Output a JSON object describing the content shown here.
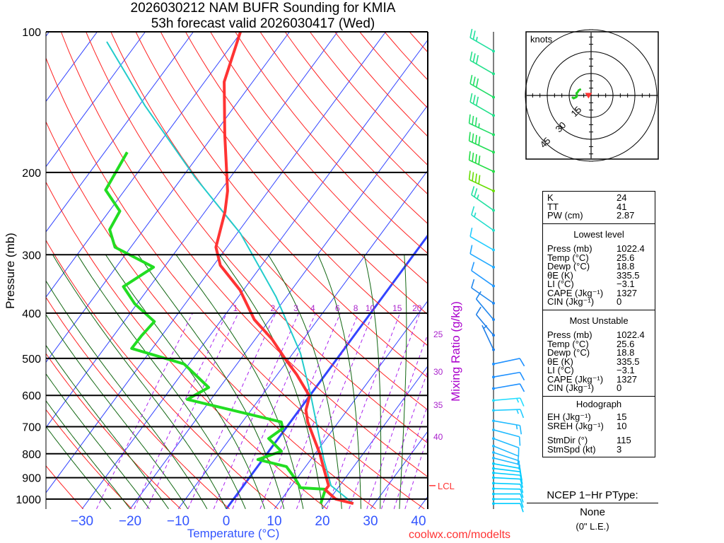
{
  "title": {
    "line1": "2026030212 NAM BUFR Sounding for KMIA",
    "line2": "53h forecast valid 2026030417 (Wed)"
  },
  "chart_data": {
    "type": "line",
    "subtype": "skew-t log-p",
    "title": "2026030212 NAM BUFR Sounding for KMIA",
    "xlabel": "Temperature (°C)",
    "ylabel": "Pressure (mb)",
    "y2label": "Mixing Ratio (g/kg)",
    "xlim": [
      -40,
      42
    ],
    "ylim": [
      1050,
      100
    ],
    "temp_ticks": [
      -30,
      -20,
      -10,
      0,
      10,
      20,
      30,
      40
    ],
    "temp_tick_labels": [
      "−30",
      "−20",
      "−10",
      "0",
      "10",
      "20",
      "30",
      "40"
    ],
    "pressure_ticks": [
      100,
      200,
      300,
      400,
      500,
      600,
      700,
      800,
      900,
      1000
    ],
    "pressure_tick_labels": [
      "100",
      "200",
      "300",
      "400",
      "500",
      "600",
      "700",
      "800",
      "900",
      "1000"
    ],
    "mixing_ratio_top": [
      1,
      2,
      3,
      4,
      6,
      8,
      10,
      15,
      20
    ],
    "mixing_ratio_top_labels": [
      "1",
      "2",
      "3",
      "4",
      "6",
      "8",
      "10",
      "15",
      "20"
    ],
    "mixing_ratio_right": [
      25,
      30,
      35,
      40
    ],
    "mixing_ratio_right_labels": [
      "25",
      "30",
      "35",
      "40"
    ],
    "lcl_label": "LCL",
    "lcl_pressure": 936,
    "series": [
      {
        "name": "Temperature",
        "color": "#ff3333",
        "p": [
          1022.4,
          1000,
          956,
          936,
          861,
          800,
          684,
          645,
          602,
          542,
          500,
          455,
          413,
          357,
          316,
          289,
          243,
          219,
          166,
          128,
          100
        ],
        "t": [
          25.6,
          21.2,
          17.7,
          17.7,
          14.1,
          11.0,
          3.6,
          1.4,
          0.0,
          -5.9,
          -10.9,
          -16.5,
          -23.2,
          -30.7,
          -38.6,
          -42.3,
          -45.8,
          -48.5,
          -57.7,
          -65.9,
          -70.2
        ]
      },
      {
        "name": "Dewpoint",
        "color": "#22dd22",
        "p": [
          1022.4,
          953,
          946,
          908,
          852,
          823,
          790,
          742,
          706,
          684,
          612,
          577,
          514,
          476,
          447,
          417,
          382,
          351,
          319,
          289,
          265,
          242,
          218,
          181
        ],
        "t": [
          18.8,
          17.6,
          12.2,
          9.9,
          6.0,
          -1.0,
          2.6,
          -2.0,
          -0.6,
          -1.9,
          -24.9,
          -22.3,
          -31.0,
          -44.3,
          -44.2,
          -43.7,
          -50.5,
          -55.5,
          -52.2,
          -63.3,
          -67.1,
          -67.8,
          -74.0,
          -75.3
        ]
      },
      {
        "name": "Parcel",
        "color": "#22cccc",
        "p": [
          1022.4,
          936,
          823,
          602,
          488,
          369,
          270,
          204,
          144,
          105
        ],
        "t": [
          25.6,
          18.2,
          12.7,
          0.3,
          -8.4,
          -22.2,
          -39.3,
          -57.6,
          -78.7,
          -96.5
        ]
      }
    ],
    "winds": [
      {
        "p": 110,
        "dir": 300,
        "spd": 25,
        "color": "#22e0a0"
      },
      {
        "p": 123,
        "dir": 300,
        "spd": 30,
        "color": "#22e08a"
      },
      {
        "p": 138,
        "dir": 300,
        "spd": 30,
        "color": "#22dd66"
      },
      {
        "p": 151,
        "dir": 300,
        "spd": 30,
        "color": "#22e08a"
      },
      {
        "p": 166,
        "dir": 295,
        "spd": 35,
        "color": "#22dd66"
      },
      {
        "p": 181,
        "dir": 295,
        "spd": 40,
        "color": "#22dd55"
      },
      {
        "p": 199,
        "dir": 295,
        "spd": 40,
        "color": "#22dd44"
      },
      {
        "p": 219,
        "dir": 295,
        "spd": 40,
        "color": "#66dd00"
      },
      {
        "p": 241,
        "dir": 305,
        "spd": 25,
        "color": "#22e0a0"
      },
      {
        "p": 266,
        "dir": 305,
        "spd": 15,
        "color": "#22ddcc"
      },
      {
        "p": 293,
        "dir": 300,
        "spd": 10,
        "color": "#22ccff"
      },
      {
        "p": 319,
        "dir": 300,
        "spd": 10,
        "color": "#22aaff"
      },
      {
        "p": 350,
        "dir": 305,
        "spd": 10,
        "color": "#2299ff"
      },
      {
        "p": 381,
        "dir": 305,
        "spd": 10,
        "color": "#2288ee"
      },
      {
        "p": 413,
        "dir": 320,
        "spd": 10,
        "color": "#2288ee"
      },
      {
        "p": 446,
        "dir": 320,
        "spd": 10,
        "color": "#1e7ee8"
      },
      {
        "p": 479,
        "dir": 335,
        "spd": 5,
        "color": "#1e7ee8"
      },
      {
        "p": 514,
        "dir": 78,
        "spd": 10,
        "color": "#1e90ff"
      },
      {
        "p": 548,
        "dir": 80,
        "spd": 10,
        "color": "#1e90ff"
      },
      {
        "p": 580,
        "dir": 80,
        "spd": 10,
        "color": "#1e90ff"
      },
      {
        "p": 615,
        "dir": 85,
        "spd": 15,
        "color": "#22ddff"
      },
      {
        "p": 646,
        "dir": 88,
        "spd": 15,
        "color": "#22ccff"
      },
      {
        "p": 680,
        "dir": 100,
        "spd": 15,
        "color": "#22bbff"
      },
      {
        "p": 711,
        "dir": 105,
        "spd": 10,
        "color": "#22bbff"
      },
      {
        "p": 742,
        "dir": 110,
        "spd": 10,
        "color": "#22bbff"
      },
      {
        "p": 770,
        "dir": 112,
        "spd": 10,
        "color": "#22bbff"
      },
      {
        "p": 795,
        "dir": 108,
        "spd": 10,
        "color": "#22bbff"
      },
      {
        "p": 817,
        "dir": 104,
        "spd": 10,
        "color": "#22bbff"
      },
      {
        "p": 840,
        "dir": 100,
        "spd": 10,
        "color": "#00ccff"
      },
      {
        "p": 860,
        "dir": 97,
        "spd": 10,
        "color": "#00ccff"
      },
      {
        "p": 879,
        "dir": 95,
        "spd": 10,
        "color": "#00ccff"
      },
      {
        "p": 900,
        "dir": 93,
        "spd": 10,
        "color": "#00ccff"
      },
      {
        "p": 925,
        "dir": 92,
        "spd": 10,
        "color": "#00ccff"
      },
      {
        "p": 950,
        "dir": 91,
        "spd": 10,
        "color": "#00ccff"
      },
      {
        "p": 975,
        "dir": 90,
        "spd": 10,
        "color": "#00ccff"
      },
      {
        "p": 1000,
        "dir": 90,
        "spd": 10,
        "color": "#00ccff"
      },
      {
        "p": 1022.4,
        "dir": 90,
        "spd": 10,
        "color": "#00ccff"
      }
    ],
    "hodograph": {
      "units_label": "knots",
      "rings": [
        15,
        30,
        45
      ],
      "ring_labels": [
        "15",
        "30",
        "45"
      ],
      "trace_u": [
        -13,
        -12,
        -11,
        -10,
        -9.5,
        -10,
        -9,
        -8.5,
        -7.5,
        -8
      ],
      "trace_v": [
        -1,
        -2,
        -1.5,
        -1,
        0,
        1.5,
        2.5,
        3.5,
        4,
        4.5
      ],
      "trace_color": "#22cc22",
      "storm_dir": 115,
      "storm_spd": 3,
      "storm_color": "#ff3333"
    }
  },
  "stats": {
    "indices": [
      {
        "label": "K",
        "value": "24"
      },
      {
        "label": "TT",
        "value": "41"
      },
      {
        "label": "PW (cm)",
        "value": "2.87"
      }
    ],
    "lowest": {
      "header": "Lowest level",
      "rows": [
        {
          "label": "Press (mb)",
          "value": "1022.4"
        },
        {
          "label": "Temp (°C)",
          "value": "25.6"
        },
        {
          "label": "Dewp (°C)",
          "value": "18.8"
        },
        {
          "label": "θE (K)",
          "value": "335.5"
        },
        {
          "label": "LI (°C)",
          "value": "−3.1"
        },
        {
          "label": "CAPE (Jkg⁻¹)",
          "value": "1327"
        },
        {
          "label": "CIN (Jkg⁻¹)",
          "value": "0"
        }
      ]
    },
    "unstable": {
      "header": "Most Unstable",
      "rows": [
        {
          "label": "Press (mb)",
          "value": "1022.4"
        },
        {
          "label": "Temp (°C)",
          "value": "25.6"
        },
        {
          "label": "Dewp (°C)",
          "value": "18.8"
        },
        {
          "label": "θE (K)",
          "value": "335.5"
        },
        {
          "label": "LI (°C)",
          "value": "−3.1"
        },
        {
          "label": "CAPE (Jkg⁻¹)",
          "value": "1327"
        },
        {
          "label": "CIN (Jkg⁻¹)",
          "value": "0"
        }
      ]
    },
    "hodo": {
      "header": "Hodograph",
      "rows": [
        {
          "label": "EH (Jkg⁻¹)",
          "value": "15"
        },
        {
          "label": "SREH (Jkg⁻¹)",
          "value": "10"
        }
      ],
      "rows2": [
        {
          "label": "StmDir (°)",
          "value": "115"
        },
        {
          "label": "StmSpd (kt)",
          "value": "3"
        }
      ]
    }
  },
  "ptype": {
    "header": "NCEP 1−Hr PType:",
    "value": "None",
    "note": "(0\" L.E.)"
  },
  "credit": "coolwx.com/modelts"
}
